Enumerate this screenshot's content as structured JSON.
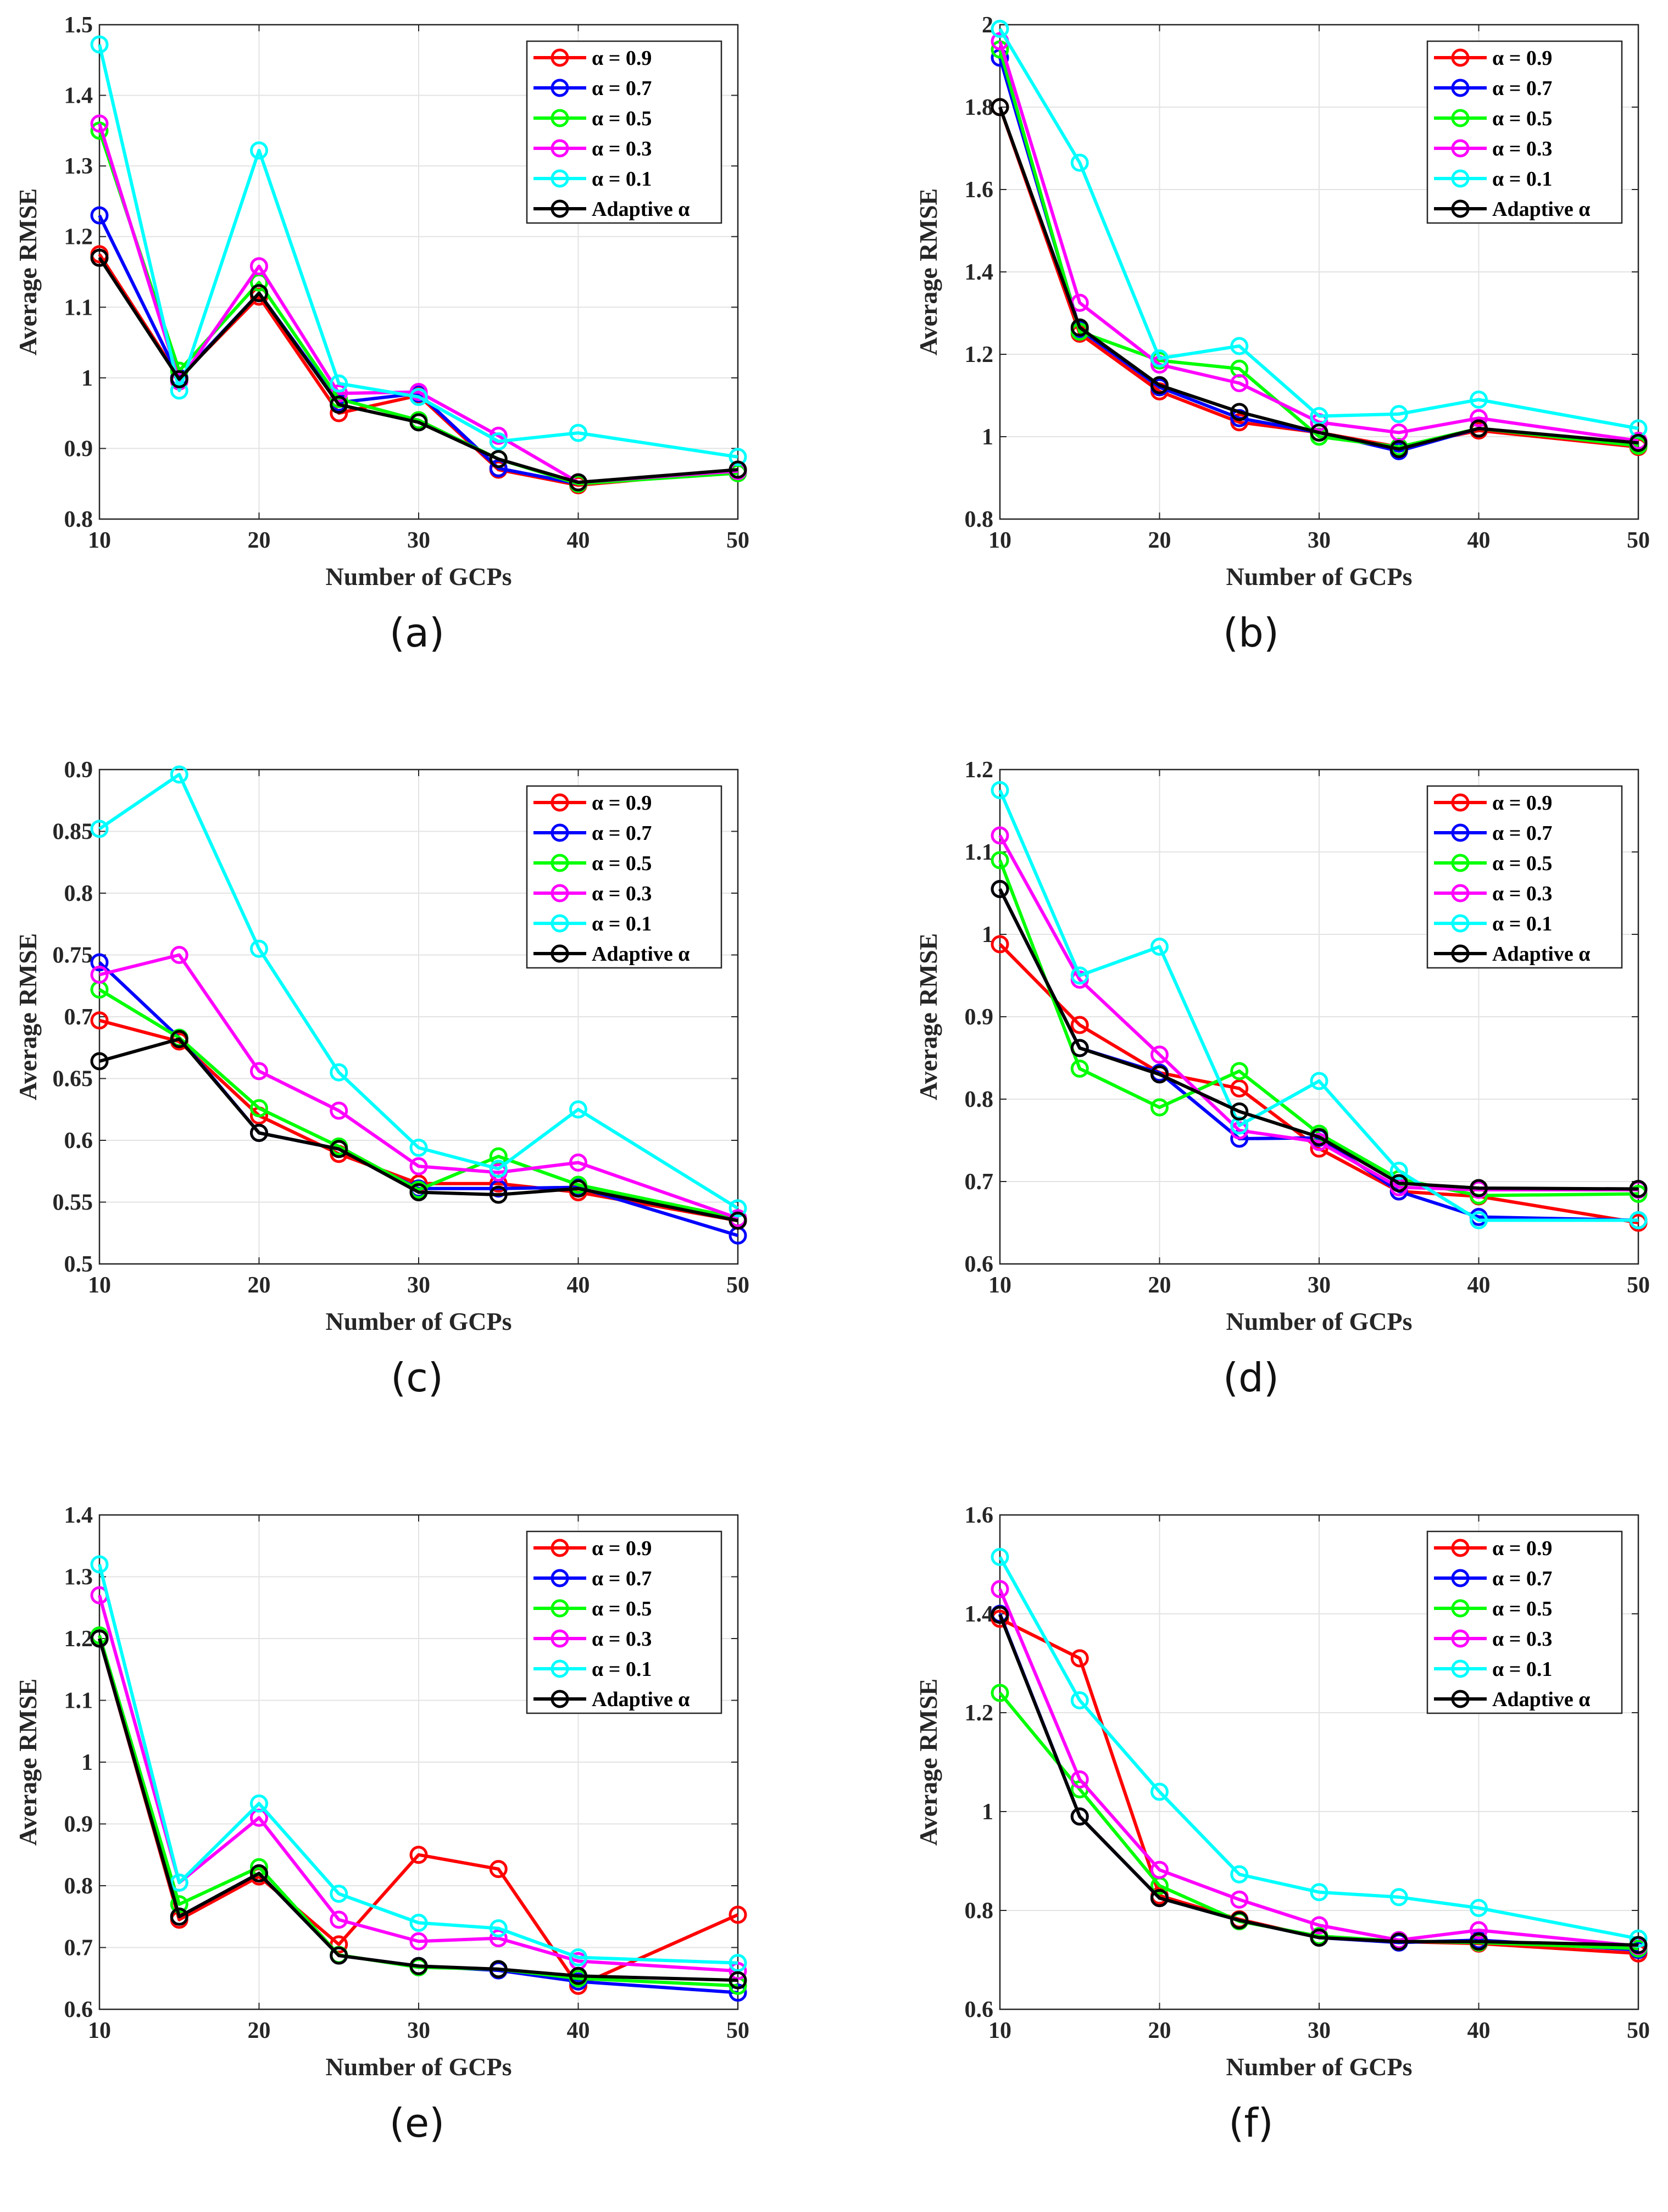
{
  "chart_data": [
    {
      "type": "line",
      "caption": "(a)",
      "xlabel": "Number of GCPs",
      "ylabel": "Average RMSE",
      "x": [
        10,
        15,
        20,
        25,
        30,
        35,
        40,
        50
      ],
      "xlim": [
        10,
        50
      ],
      "xticks": [
        "10",
        "20",
        "30",
        "40",
        "50"
      ],
      "ylim": [
        0.8,
        1.5
      ],
      "yticks": [
        "0.8",
        "0.9",
        "1",
        "1.1",
        "1.2",
        "1.3",
        "1.4",
        "1.5"
      ],
      "grid": true,
      "legend": "top-right",
      "series": [
        {
          "name": "α = 0.9",
          "color": "#ff0000",
          "values": [
            1.175,
            1.0,
            1.115,
            0.95,
            0.975,
            0.87,
            0.848,
            0.868
          ]
        },
        {
          "name": "α = 0.7",
          "color": "#0000ff",
          "values": [
            1.23,
            1.0,
            1.12,
            0.965,
            0.978,
            0.872,
            0.85,
            0.868
          ]
        },
        {
          "name": "α = 0.5",
          "color": "#00ff00",
          "values": [
            1.35,
            1.01,
            1.135,
            0.97,
            0.94,
            0.885,
            0.85,
            0.865
          ]
        },
        {
          "name": "α = 0.3",
          "color": "#ff00ff",
          "values": [
            1.36,
            0.995,
            1.158,
            0.978,
            0.98,
            0.918,
            0.852,
            0.868
          ]
        },
        {
          "name": "α = 0.1",
          "color": "#00ffff",
          "values": [
            1.472,
            0.982,
            1.322,
            0.992,
            0.973,
            0.91,
            0.922,
            0.888
          ]
        },
        {
          "name": "Adaptive α",
          "color": "#000000",
          "values": [
            1.17,
            0.998,
            1.12,
            0.962,
            0.937,
            0.885,
            0.852,
            0.87
          ]
        }
      ]
    },
    {
      "type": "line",
      "caption": "(b)",
      "xlabel": "Number of GCPs",
      "ylabel": "Average RMSE",
      "x": [
        10,
        15,
        20,
        25,
        30,
        35,
        40,
        50
      ],
      "xlim": [
        10,
        50
      ],
      "xticks": [
        "10",
        "20",
        "30",
        "40",
        "50"
      ],
      "ylim": [
        0.8,
        2.0
      ],
      "yticks": [
        "0.8",
        "1",
        "1.2",
        "1.4",
        "1.6",
        "1.8",
        "2"
      ],
      "grid": true,
      "legend": "top-right",
      "series": [
        {
          "name": "α = 0.9",
          "color": "#ff0000",
          "values": [
            1.8,
            1.25,
            1.11,
            1.035,
            1.01,
            0.975,
            1.015,
            0.975
          ]
        },
        {
          "name": "α = 0.7",
          "color": "#0000ff",
          "values": [
            1.92,
            1.26,
            1.12,
            1.045,
            1.01,
            0.965,
            1.02,
            0.98
          ]
        },
        {
          "name": "α = 0.5",
          "color": "#00ff00",
          "values": [
            1.94,
            1.255,
            1.185,
            1.165,
            1.0,
            0.975,
            1.02,
            0.978
          ]
        },
        {
          "name": "α = 0.3",
          "color": "#ff00ff",
          "values": [
            1.96,
            1.325,
            1.175,
            1.13,
            1.035,
            1.01,
            1.045,
            0.99
          ]
        },
        {
          "name": "α = 0.1",
          "color": "#00ffff",
          "values": [
            1.99,
            1.665,
            1.19,
            1.22,
            1.05,
            1.055,
            1.09,
            1.02
          ]
        },
        {
          "name": "Adaptive α",
          "color": "#000000",
          "values": [
            1.8,
            1.265,
            1.125,
            1.06,
            1.01,
            0.97,
            1.02,
            0.985
          ]
        }
      ]
    },
    {
      "type": "line",
      "caption": "(c)",
      "xlabel": "Number of GCPs",
      "ylabel": "Average RMSE",
      "x": [
        10,
        15,
        20,
        25,
        30,
        35,
        40,
        50
      ],
      "xlim": [
        10,
        50
      ],
      "xticks": [
        "10",
        "20",
        "30",
        "40",
        "50"
      ],
      "ylim": [
        0.5,
        0.9
      ],
      "yticks": [
        "0.5",
        "0.55",
        "0.6",
        "0.65",
        "0.7",
        "0.75",
        "0.8",
        "0.85",
        "0.9"
      ],
      "grid": true,
      "legend": "top-right",
      "series": [
        {
          "name": "α = 0.9",
          "color": "#ff0000",
          "values": [
            0.697,
            0.68,
            0.62,
            0.589,
            0.565,
            0.565,
            0.558,
            0.535
          ]
        },
        {
          "name": "α = 0.7",
          "color": "#0000ff",
          "values": [
            0.744,
            0.683,
            0.606,
            0.593,
            0.561,
            0.561,
            0.562,
            0.523
          ]
        },
        {
          "name": "α = 0.5",
          "color": "#00ff00",
          "values": [
            0.722,
            0.683,
            0.626,
            0.595,
            0.56,
            0.587,
            0.564,
            0.537
          ]
        },
        {
          "name": "α = 0.3",
          "color": "#ff00ff",
          "values": [
            0.734,
            0.75,
            0.656,
            0.624,
            0.579,
            0.574,
            0.582,
            0.537
          ]
        },
        {
          "name": "α = 0.1",
          "color": "#00ffff",
          "values": [
            0.852,
            0.896,
            0.755,
            0.655,
            0.594,
            0.577,
            0.625,
            0.545
          ]
        },
        {
          "name": "Adaptive α",
          "color": "#000000",
          "values": [
            0.664,
            0.682,
            0.606,
            0.593,
            0.558,
            0.556,
            0.561,
            0.535
          ]
        }
      ]
    },
    {
      "type": "line",
      "caption": "(d)",
      "xlabel": "Number of GCPs",
      "ylabel": "Average RMSE",
      "x": [
        10,
        15,
        20,
        25,
        30,
        35,
        40,
        50
      ],
      "xlim": [
        10,
        50
      ],
      "xticks": [
        "10",
        "20",
        "30",
        "40",
        "50"
      ],
      "ylim": [
        0.6,
        1.2
      ],
      "yticks": [
        "0.6",
        "0.7",
        "0.8",
        "0.9",
        "1",
        "1.1",
        "1.2"
      ],
      "grid": true,
      "legend": "top-right",
      "series": [
        {
          "name": "α = 0.9",
          "color": "#ff0000",
          "values": [
            0.988,
            0.89,
            0.832,
            0.813,
            0.74,
            0.688,
            0.682,
            0.65
          ]
        },
        {
          "name": "α = 0.7",
          "color": "#0000ff",
          "values": [
            1.055,
            0.862,
            0.832,
            0.752,
            0.753,
            0.688,
            0.657,
            0.653
          ]
        },
        {
          "name": "α = 0.5",
          "color": "#00ff00",
          "values": [
            1.09,
            0.837,
            0.79,
            0.834,
            0.758,
            0.703,
            0.683,
            0.685
          ]
        },
        {
          "name": "α = 0.3",
          "color": "#ff00ff",
          "values": [
            1.12,
            0.945,
            0.854,
            0.762,
            0.748,
            0.693,
            0.69,
            0.69
          ]
        },
        {
          "name": "α = 0.1",
          "color": "#00ffff",
          "values": [
            1.175,
            0.95,
            0.985,
            0.768,
            0.822,
            0.713,
            0.653,
            0.653
          ]
        },
        {
          "name": "Adaptive α",
          "color": "#000000",
          "values": [
            1.055,
            0.862,
            0.83,
            0.785,
            0.754,
            0.698,
            0.692,
            0.691
          ]
        }
      ]
    },
    {
      "type": "line",
      "caption": "(e)",
      "xlabel": "Number of GCPs",
      "ylabel": "Average RMSE",
      "x": [
        10,
        15,
        20,
        25,
        30,
        35,
        40,
        50
      ],
      "xlim": [
        10,
        50
      ],
      "xticks": [
        "10",
        "20",
        "30",
        "40",
        "50"
      ],
      "ylim": [
        0.6,
        1.4
      ],
      "yticks": [
        "0.6",
        "0.7",
        "0.8",
        "0.9",
        "1",
        "1.1",
        "1.2",
        "1.3",
        "1.4"
      ],
      "grid": true,
      "legend": "top-right",
      "series": [
        {
          "name": "α = 0.9",
          "color": "#ff0000",
          "values": [
            1.2,
            0.745,
            0.815,
            0.705,
            0.85,
            0.827,
            0.638,
            0.753
          ]
        },
        {
          "name": "α = 0.7",
          "color": "#0000ff",
          "values": [
            1.2,
            0.75,
            0.82,
            0.687,
            0.67,
            0.663,
            0.645,
            0.627
          ]
        },
        {
          "name": "α = 0.5",
          "color": "#00ff00",
          "values": [
            1.205,
            0.77,
            0.83,
            0.688,
            0.668,
            0.665,
            0.65,
            0.638
          ]
        },
        {
          "name": "α = 0.3",
          "color": "#ff00ff",
          "values": [
            1.27,
            0.805,
            0.91,
            0.745,
            0.71,
            0.715,
            0.678,
            0.662
          ]
        },
        {
          "name": "α = 0.1",
          "color": "#00ffff",
          "values": [
            1.32,
            0.805,
            0.933,
            0.787,
            0.74,
            0.731,
            0.684,
            0.675
          ]
        },
        {
          "name": "Adaptive α",
          "color": "#000000",
          "values": [
            1.2,
            0.75,
            0.82,
            0.687,
            0.67,
            0.665,
            0.654,
            0.647
          ]
        }
      ]
    },
    {
      "type": "line",
      "caption": "(f)",
      "xlabel": "Number of GCPs",
      "ylabel": "Average RMSE",
      "x": [
        10,
        15,
        20,
        25,
        30,
        35,
        40,
        50
      ],
      "xlim": [
        10,
        50
      ],
      "xticks": [
        "10",
        "20",
        "30",
        "40",
        "50"
      ],
      "ylim": [
        0.6,
        1.6
      ],
      "yticks": [
        "0.6",
        "0.8",
        "1",
        "1.2",
        "1.4",
        "1.6"
      ],
      "grid": true,
      "legend": "top-right",
      "series": [
        {
          "name": "α = 0.9",
          "color": "#ff0000",
          "values": [
            1.39,
            1.31,
            0.83,
            0.782,
            0.745,
            0.737,
            0.733,
            0.713
          ]
        },
        {
          "name": "α = 0.7",
          "color": "#0000ff",
          "values": [
            1.4,
            0.99,
            0.825,
            0.78,
            0.745,
            0.735,
            0.74,
            0.72
          ]
        },
        {
          "name": "α = 0.5",
          "color": "#00ff00",
          "values": [
            1.24,
            1.045,
            0.85,
            0.778,
            0.748,
            0.738,
            0.735,
            0.723
          ]
        },
        {
          "name": "α = 0.3",
          "color": "#ff00ff",
          "values": [
            1.45,
            1.065,
            0.882,
            0.822,
            0.77,
            0.74,
            0.76,
            0.728
          ]
        },
        {
          "name": "α = 0.1",
          "color": "#00ffff",
          "values": [
            1.515,
            1.225,
            1.04,
            0.873,
            0.837,
            0.827,
            0.805,
            0.743
          ]
        },
        {
          "name": "Adaptive α",
          "color": "#000000",
          "values": [
            1.398,
            0.99,
            0.825,
            0.78,
            0.745,
            0.737,
            0.737,
            0.73
          ]
        }
      ]
    }
  ]
}
